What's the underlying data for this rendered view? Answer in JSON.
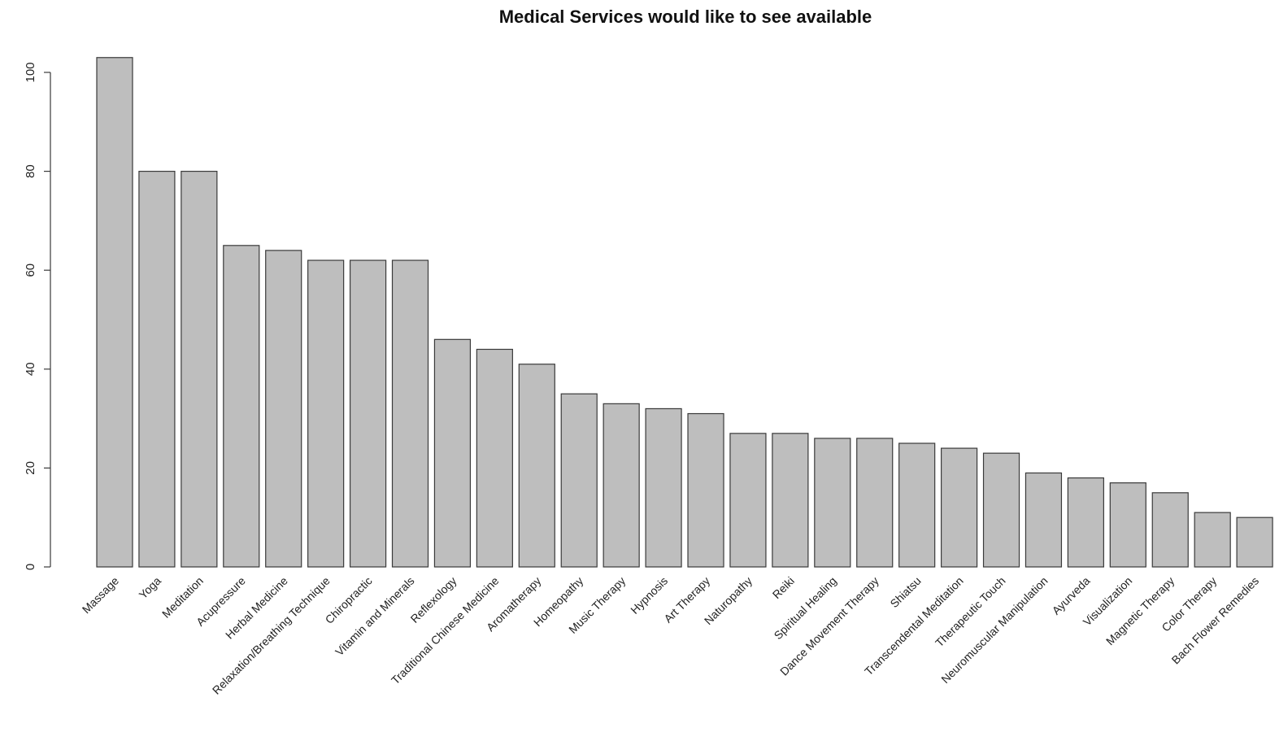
{
  "chart_data": {
    "type": "bar",
    "title": "Medical Services would like to see available",
    "xlabel": "",
    "ylabel": "",
    "ylim": [
      0,
      105
    ],
    "yticks": [
      0,
      20,
      40,
      60,
      80,
      100
    ],
    "grid": false,
    "bar_color": "#bebebe",
    "categories": [
      "Massage",
      "Yoga",
      "Meditation",
      "Acupressure",
      "Herbal Medicine",
      "Relaxation/Breathing Technique",
      "Chiropractic",
      "Vitamin and Minerals",
      "Reflexology",
      "Traditional Chinese Medicine",
      "Aromatherapy",
      "Homeopathy",
      "Music Therapy",
      "Hypnosis",
      "Art Therapy",
      "Naturopathy",
      "Reiki",
      "Spiritual Healing",
      "Dance Movement Therapy",
      "Shiatsu",
      "Transcendental Meditation",
      "Therapeutic Touch",
      "Neuromuscular Manipulation",
      "Ayurveda",
      "Visualization",
      "Magnetic Therapy",
      "Color Therapy",
      "Bach Flower Remedies"
    ],
    "values": [
      103,
      80,
      80,
      65,
      64,
      62,
      62,
      62,
      46,
      44,
      41,
      35,
      33,
      32,
      31,
      27,
      27,
      26,
      26,
      25,
      24,
      23,
      19,
      18,
      17,
      15,
      11,
      10
    ]
  }
}
